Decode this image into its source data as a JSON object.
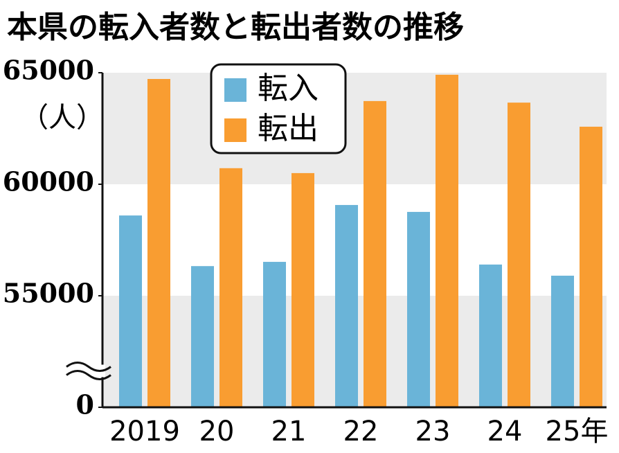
{
  "chart_data": {
    "type": "bar",
    "title": "本県の転入者数と転出者数の推移",
    "y_label": "（人）",
    "categories": [
      "2019",
      "20",
      "21",
      "22",
      "23",
      "24",
      "25年"
    ],
    "series": [
      {
        "name": "転入",
        "color": "#6ab4d8",
        "values": [
          58600,
          56330,
          56520,
          59070,
          58760,
          56400,
          55900
        ]
      },
      {
        "name": "転出",
        "color": "#f99d31",
        "values": [
          64720,
          60720,
          60500,
          63730,
          64910,
          63660,
          62580
        ]
      }
    ],
    "ylim": [
      50000,
      65000
    ],
    "yticks": [
      0,
      55000,
      60000,
      65000
    ],
    "axis_break": true,
    "bands": true
  }
}
